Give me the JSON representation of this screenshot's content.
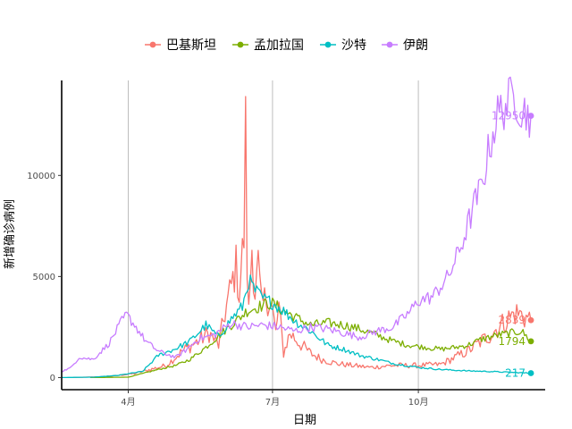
{
  "chart_data": {
    "type": "line",
    "xlabel": "日期",
    "ylabel": "新增确诊病例",
    "x_range": [
      "2020-02-19",
      "2020-12-20"
    ],
    "ylim": [
      -600,
      14700
    ],
    "x_ticks": [
      {
        "date": "2020-04-01",
        "label": "4月"
      },
      {
        "date": "2020-07-01",
        "label": "7月"
      },
      {
        "date": "2020-10-01",
        "label": "10月"
      }
    ],
    "y_ticks": [
      0,
      5000,
      10000
    ],
    "grid": {
      "vertical_major": true,
      "horizontal": false
    },
    "legend": {
      "position": "top"
    },
    "series": [
      {
        "name": "巴基斯坦",
        "color": "#F8766D",
        "end_label": "2839",
        "points": [
          [
            "2020-02-26",
            0
          ],
          [
            "2020-03-15",
            40
          ],
          [
            "2020-03-25",
            100
          ],
          [
            "2020-04-05",
            200
          ],
          [
            "2020-04-15",
            400
          ],
          [
            "2020-04-25",
            600
          ],
          [
            "2020-05-05",
            1300
          ],
          [
            "2020-05-15",
            1800
          ],
          [
            "2020-05-22",
            2200
          ],
          [
            "2020-05-28",
            1600
          ],
          [
            "2020-06-01",
            3200
          ],
          [
            "2020-06-05",
            4500
          ],
          [
            "2020-06-08",
            5500
          ],
          [
            "2020-06-10",
            4200
          ],
          [
            "2020-06-13",
            7000
          ],
          [
            "2020-06-14",
            12000
          ],
          [
            "2020-06-15",
            5500
          ],
          [
            "2020-06-16",
            3200
          ],
          [
            "2020-06-18",
            6500
          ],
          [
            "2020-06-20",
            4200
          ],
          [
            "2020-06-22",
            5500
          ],
          [
            "2020-06-24",
            3500
          ],
          [
            "2020-06-27",
            4000
          ],
          [
            "2020-06-29",
            3800
          ],
          [
            "2020-07-01",
            3300
          ],
          [
            "2020-07-03",
            2200
          ],
          [
            "2020-07-05",
            3500
          ],
          [
            "2020-07-08",
            1200
          ],
          [
            "2020-07-12",
            2200
          ],
          [
            "2020-07-18",
            1700
          ],
          [
            "2020-07-25",
            1200
          ],
          [
            "2020-08-01",
            900
          ],
          [
            "2020-08-10",
            700
          ],
          [
            "2020-08-20",
            600
          ],
          [
            "2020-09-01",
            500
          ],
          [
            "2020-09-15",
            600
          ],
          [
            "2020-10-01",
            600
          ],
          [
            "2020-10-15",
            650
          ],
          [
            "2020-11-01",
            1300
          ],
          [
            "2020-11-15",
            2100
          ],
          [
            "2020-11-25",
            2800
          ],
          [
            "2020-12-01",
            3200
          ],
          [
            "2020-12-05",
            3100
          ],
          [
            "2020-12-11",
            2839
          ]
        ]
      },
      {
        "name": "孟加拉国",
        "color": "#7CAE00",
        "end_label": "1794",
        "points": [
          [
            "2020-03-08",
            0
          ],
          [
            "2020-04-01",
            20
          ],
          [
            "2020-04-10",
            200
          ],
          [
            "2020-04-20",
            400
          ],
          [
            "2020-05-01",
            600
          ],
          [
            "2020-05-10",
            900
          ],
          [
            "2020-05-20",
            1500
          ],
          [
            "2020-05-30",
            2200
          ],
          [
            "2020-06-08",
            2800
          ],
          [
            "2020-06-15",
            3300
          ],
          [
            "2020-06-22",
            3500
          ],
          [
            "2020-06-30",
            3700
          ],
          [
            "2020-07-08",
            3300
          ],
          [
            "2020-07-15",
            3000
          ],
          [
            "2020-07-25",
            2600
          ],
          [
            "2020-08-05",
            2700
          ],
          [
            "2020-08-15",
            2600
          ],
          [
            "2020-08-25",
            2400
          ],
          [
            "2020-09-05",
            2100
          ],
          [
            "2020-09-15",
            1800
          ],
          [
            "2020-09-25",
            1600
          ],
          [
            "2020-10-05",
            1500
          ],
          [
            "2020-10-15",
            1400
          ],
          [
            "2020-10-25",
            1500
          ],
          [
            "2020-11-01",
            1600
          ],
          [
            "2020-11-10",
            1900
          ],
          [
            "2020-11-20",
            2100
          ],
          [
            "2020-11-28",
            2200
          ],
          [
            "2020-12-05",
            2300
          ],
          [
            "2020-12-11",
            1794
          ]
        ]
      },
      {
        "name": "沙特",
        "color": "#00BFC4",
        "end_label": "217",
        "points": [
          [
            "2020-02-19",
            0
          ],
          [
            "2020-03-10",
            20
          ],
          [
            "2020-03-25",
            100
          ],
          [
            "2020-04-10",
            300
          ],
          [
            "2020-04-20",
            1100
          ],
          [
            "2020-04-30",
            1400
          ],
          [
            "2020-05-10",
            1800
          ],
          [
            "2020-05-20",
            2600
          ],
          [
            "2020-05-28",
            2000
          ],
          [
            "2020-06-05",
            2900
          ],
          [
            "2020-06-12",
            3500
          ],
          [
            "2020-06-16",
            4800
          ],
          [
            "2020-06-20",
            4300
          ],
          [
            "2020-06-25",
            3900
          ],
          [
            "2020-07-01",
            3700
          ],
          [
            "2020-07-08",
            3300
          ],
          [
            "2020-07-15",
            2800
          ],
          [
            "2020-07-25",
            2300
          ],
          [
            "2020-08-05",
            1600
          ],
          [
            "2020-08-15",
            1400
          ],
          [
            "2020-08-25",
            1100
          ],
          [
            "2020-09-05",
            900
          ],
          [
            "2020-09-15",
            700
          ],
          [
            "2020-10-01",
            500
          ],
          [
            "2020-10-15",
            400
          ],
          [
            "2020-11-01",
            330
          ],
          [
            "2020-11-15",
            300
          ],
          [
            "2020-12-01",
            250
          ],
          [
            "2020-12-11",
            217
          ]
        ]
      },
      {
        "name": "伊朗",
        "color": "#C77CFF",
        "end_label": "12950",
        "points": [
          [
            "2020-02-19",
            300
          ],
          [
            "2020-02-25",
            500
          ],
          [
            "2020-03-01",
            1000
          ],
          [
            "2020-03-10",
            900
          ],
          [
            "2020-03-20",
            1700
          ],
          [
            "2020-03-28",
            2800
          ],
          [
            "2020-03-31",
            3100
          ],
          [
            "2020-04-05",
            2600
          ],
          [
            "2020-04-12",
            1800
          ],
          [
            "2020-04-20",
            1300
          ],
          [
            "2020-05-01",
            1000
          ],
          [
            "2020-05-08",
            1400
          ],
          [
            "2020-05-15",
            1900
          ],
          [
            "2020-05-25",
            2100
          ],
          [
            "2020-06-05",
            2700
          ],
          [
            "2020-06-15",
            2500
          ],
          [
            "2020-06-25",
            2600
          ],
          [
            "2020-07-05",
            2500
          ],
          [
            "2020-07-15",
            2300
          ],
          [
            "2020-07-25",
            2500
          ],
          [
            "2020-08-05",
            2400
          ],
          [
            "2020-08-15",
            2200
          ],
          [
            "2020-08-25",
            2000
          ],
          [
            "2020-09-05",
            2300
          ],
          [
            "2020-09-15",
            2500
          ],
          [
            "2020-09-25",
            3200
          ],
          [
            "2020-10-01",
            3800
          ],
          [
            "2020-10-10",
            4000
          ],
          [
            "2020-10-20",
            5000
          ],
          [
            "2020-10-28",
            6500
          ],
          [
            "2020-11-05",
            8500
          ],
          [
            "2020-11-10",
            9500
          ],
          [
            "2020-11-15",
            11500
          ],
          [
            "2020-11-20",
            13000
          ],
          [
            "2020-11-25",
            13500
          ],
          [
            "2020-12-01",
            14000
          ],
          [
            "2020-12-05",
            13300
          ],
          [
            "2020-12-11",
            12950
          ]
        ]
      }
    ]
  }
}
